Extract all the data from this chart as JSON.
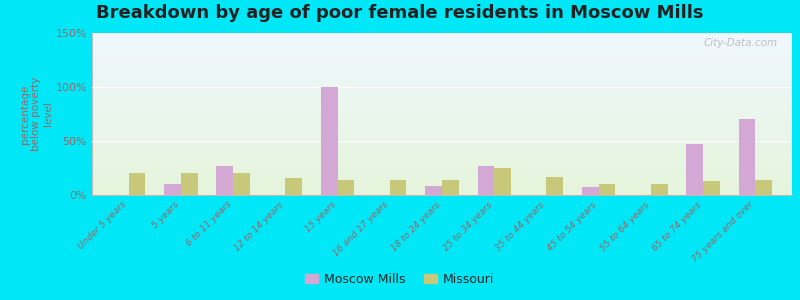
{
  "title": "Breakdown by age of poor female residents in Moscow Mills",
  "categories": [
    "Under 5 years",
    "5 years",
    "6 to 11 years",
    "12 to 14 years",
    "15 years",
    "16 and 17 years",
    "18 to 24 years",
    "25 to 34 years",
    "35 to 44 years",
    "45 to 54 years",
    "55 to 64 years",
    "65 to 74 years",
    "75 years and over"
  ],
  "moscow_mills": [
    0,
    10,
    27,
    0,
    100,
    0,
    8,
    27,
    0,
    7,
    0,
    47,
    70
  ],
  "missouri": [
    20,
    20,
    20,
    16,
    14,
    14,
    14,
    25,
    17,
    10,
    10,
    13,
    14
  ],
  "moscow_mills_color": "#d4a8d4",
  "missouri_color": "#c8c87a",
  "ylabel": "percentage\nbelow poverty\nlevel",
  "ylim": [
    0,
    150
  ],
  "yticks": [
    0,
    50,
    100,
    150
  ],
  "ytick_labels": [
    "0%",
    "50%",
    "100%",
    "150%"
  ],
  "outer_bg": "#00e8f8",
  "plot_bg_top": "#f0f8ff",
  "plot_bg_bottom": "#e8f5e0",
  "watermark": "City-Data.com",
  "legend_moscow": "Moscow Mills",
  "legend_missouri": "Missouri",
  "title_fontsize": 13,
  "axis_color": "#996666",
  "tick_color": "#996666"
}
